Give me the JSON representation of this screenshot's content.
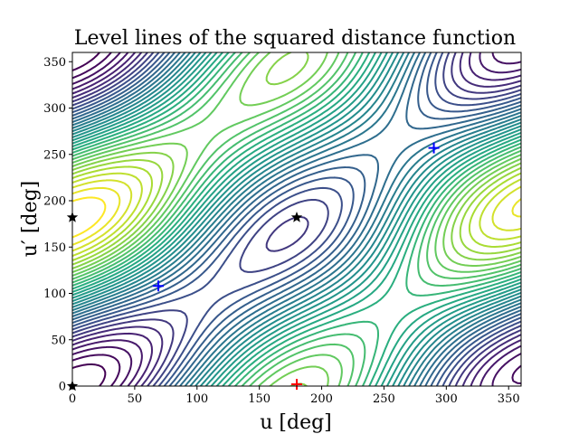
{
  "chart_data": {
    "type": "contour",
    "title": "Level lines of the squared distance function",
    "xlabel": "u [deg]",
    "ylabel": "u′ [deg]",
    "xlim": [
      0,
      360
    ],
    "ylim": [
      0,
      360
    ],
    "xticks": [
      0,
      50,
      100,
      150,
      200,
      250,
      300,
      350
    ],
    "yticks": [
      0,
      50,
      100,
      150,
      200,
      250,
      300,
      350
    ],
    "colormap": "viridis",
    "grid": false,
    "markers": [
      {
        "name": "local-minimum",
        "symbol": "+",
        "color": "#0000ff",
        "x": 69,
        "y": 108
      },
      {
        "name": "local-minimum",
        "symbol": "+",
        "color": "#0000ff",
        "x": 290,
        "y": 257
      },
      {
        "name": "global-maximum",
        "symbol": "+",
        "color": "#ff0000",
        "x": 180,
        "y": 2
      },
      {
        "name": "saddle-point",
        "symbol": "star",
        "color": "#000000",
        "x": 180,
        "y": 182
      },
      {
        "name": "saddle-point",
        "symbol": "star",
        "color": "#000000",
        "x": 0,
        "y": 182
      },
      {
        "name": "saddle-point",
        "symbol": "star",
        "color": "#000000",
        "x": 0,
        "y": 0
      }
    ]
  }
}
